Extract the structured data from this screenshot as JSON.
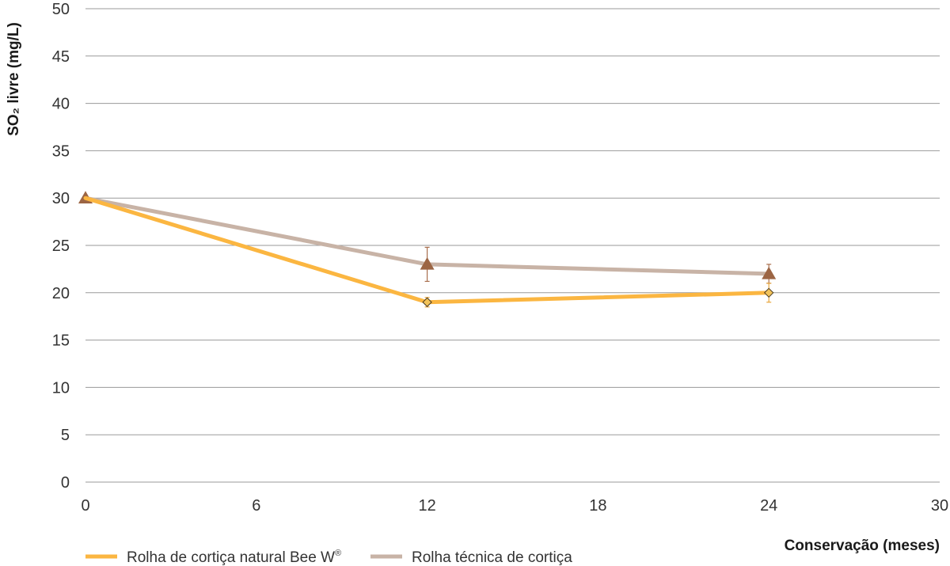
{
  "chart_data": {
    "type": "line",
    "xlabel": "Conservação (meses)",
    "ylabel": "SO₂ livre (mg/L)",
    "xlim": [
      0,
      30
    ],
    "ylim": [
      0,
      50
    ],
    "xticks": [
      "0",
      "6",
      "12",
      "18",
      "24",
      "30"
    ],
    "yticks": [
      "0",
      "5",
      "10",
      "15",
      "20",
      "25",
      "30",
      "35",
      "40",
      "45",
      "50"
    ],
    "grid": "horizontal",
    "legend_position": "bottom-left",
    "series": [
      {
        "name": "Rolha de cortiça natural Bee W",
        "name_sup": "®",
        "color": "#FBB641",
        "marker": "diamond",
        "marker_color": "#F2C35A",
        "errorbar_color": "#E8A53A",
        "points": [
          {
            "x": 0,
            "y": 30,
            "err": 0
          },
          {
            "x": 12,
            "y": 19,
            "err": 0.5
          },
          {
            "x": 24,
            "y": 20,
            "err": 1
          }
        ]
      },
      {
        "name": "Rolha técnica de cortiça",
        "color": "#C8B3A6",
        "marker": "triangle",
        "marker_color": "#9C6544",
        "errorbar_color": "#A86E4C",
        "points": [
          {
            "x": 0,
            "y": 30,
            "err": 0
          },
          {
            "x": 12,
            "y": 23,
            "err": 1.8
          },
          {
            "x": 24,
            "y": 22,
            "err": 1
          }
        ]
      }
    ]
  }
}
